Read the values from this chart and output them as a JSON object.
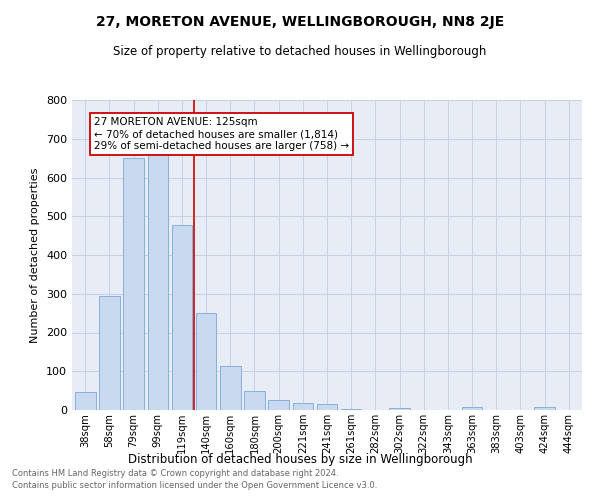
{
  "title": "27, MORETON AVENUE, WELLINGBOROUGH, NN8 2JE",
  "subtitle": "Size of property relative to detached houses in Wellingborough",
  "xlabel": "Distribution of detached houses by size in Wellingborough",
  "ylabel": "Number of detached properties",
  "bar_labels": [
    "38sqm",
    "58sqm",
    "79sqm",
    "99sqm",
    "119sqm",
    "140sqm",
    "160sqm",
    "180sqm",
    "200sqm",
    "221sqm",
    "241sqm",
    "261sqm",
    "282sqm",
    "302sqm",
    "322sqm",
    "343sqm",
    "363sqm",
    "383sqm",
    "403sqm",
    "424sqm",
    "444sqm"
  ],
  "bar_values": [
    47,
    293,
    650,
    662,
    477,
    250,
    113,
    50,
    27,
    18,
    15,
    3,
    0,
    6,
    0,
    0,
    9,
    0,
    0,
    8,
    0
  ],
  "bar_color": "#c9d9f0",
  "bar_edge_color": "#7aa8d8",
  "grid_color": "#c8d0e8",
  "plot_bg_color": "#e8ecf4",
  "fig_bg_color": "#ffffff",
  "vline_x_index": 4.5,
  "vline_color": "#cc0000",
  "annotation_text": "27 MORETON AVENUE: 125sqm\n← 70% of detached houses are smaller (1,814)\n29% of semi-detached houses are larger (758) →",
  "annotation_box_color": "#ffffff",
  "annotation_box_edge": "#cc0000",
  "footnote1": "Contains HM Land Registry data © Crown copyright and database right 2024.",
  "footnote2": "Contains public sector information licensed under the Open Government Licence v3.0.",
  "ylim": [
    0,
    800
  ],
  "yticks": [
    0,
    100,
    200,
    300,
    400,
    500,
    600,
    700,
    800
  ]
}
